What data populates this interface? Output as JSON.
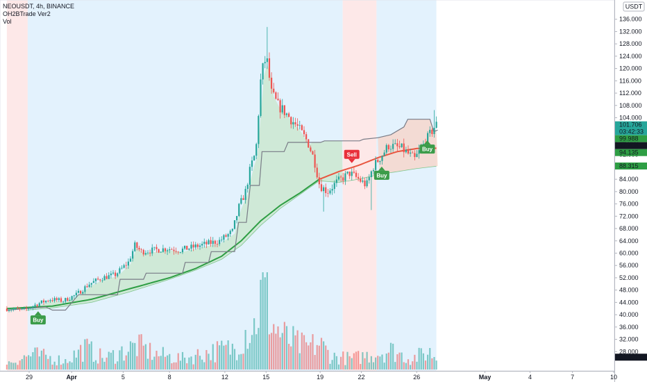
{
  "legend": {
    "symbol_line": "NEOUSDT, 4h, BINANCE",
    "indicator": "OH2BTrade Ver2",
    "volume": "Vol"
  },
  "currency_badge": "USDT",
  "colors": {
    "up": "#26a69a",
    "down": "#ef5350",
    "bg_bull": "#e3f2fd",
    "bg_bear": "#fde8e8",
    "ema_green": "#2e9e44",
    "ema_red": "#e8553f",
    "stop_line": "#787b86",
    "fill_green": "#c8e6c9",
    "fill_red": "#f8d3c5",
    "buy": "#3b9c49",
    "sell": "#e8303b"
  },
  "chart_data": {
    "type": "candlestick",
    "symbol": "NEOUSDT",
    "interval": "4h",
    "exchange": "BINANCE",
    "ylim": [
      24,
      140
    ],
    "y_ticks": [
      "28.000",
      "32.000",
      "36.000",
      "40.000",
      "44.000",
      "48.000",
      "52.000",
      "56.000",
      "60.000",
      "64.000",
      "68.000",
      "72.000",
      "76.000",
      "80.000",
      "84.000",
      "88.000",
      "92.000",
      "96.000",
      "100.000",
      "104.000",
      "108.000",
      "112.000",
      "116.000",
      "120.000",
      "124.000",
      "128.000",
      "132.000",
      "136.000"
    ],
    "x_ticks": [
      "29",
      "Apr",
      "5",
      "8",
      "12",
      "15",
      "19",
      "22",
      "26",
      "May",
      "4",
      "7",
      "10"
    ],
    "price_tags": [
      {
        "label": "101.706",
        "sub": "03:42:33",
        "value": 101.706,
        "color": "#26a69a"
      },
      {
        "label": "99.988",
        "value": 99.988,
        "color": "#2e9e44"
      },
      {
        "label": "97.408",
        "value": 97.408,
        "color": "#131722"
      },
      {
        "label": "94.135",
        "value": 94.135,
        "color": "#2e9e44"
      },
      {
        "label": "88.315",
        "value": 88.315,
        "color": "#2e9e44"
      },
      {
        "label": "67.807K",
        "value": 26.2,
        "color": "#131722"
      }
    ],
    "signals": [
      {
        "type": "Buy",
        "day": 0.9,
        "price": 40.0,
        "position": "below"
      },
      {
        "type": "Sell",
        "day": 25.0,
        "price": 89.5,
        "position": "above"
      },
      {
        "type": "Buy",
        "day": 27.3,
        "price": 87.0,
        "position": "below"
      },
      {
        "type": "Buy",
        "day": 30.8,
        "price": 95.5,
        "position": "below"
      }
    ],
    "regimes": [
      {
        "from": -1.5,
        "to": 0.1,
        "state": "bear"
      },
      {
        "from": 0.1,
        "to": 24.3,
        "state": "bull"
      },
      {
        "from": 24.3,
        "to": 26.9,
        "state": "bear"
      },
      {
        "from": 26.9,
        "to": 31.5,
        "state": "bull"
      }
    ],
    "price_anchors": [
      [
        -1.5,
        42.0
      ],
      [
        0.0,
        41.5
      ],
      [
        1.0,
        43.5
      ],
      [
        2.0,
        45.0
      ],
      [
        3.0,
        44.5
      ],
      [
        4.0,
        46.5
      ],
      [
        5.0,
        50.0
      ],
      [
        6.0,
        52.0
      ],
      [
        7.0,
        53.0
      ],
      [
        8.0,
        57.0
      ],
      [
        8.5,
        62.5
      ],
      [
        9.0,
        60.5
      ],
      [
        10.0,
        61.0
      ],
      [
        11.0,
        61.5
      ],
      [
        12.0,
        61.0
      ],
      [
        13.0,
        62.0
      ],
      [
        14.0,
        63.0
      ],
      [
        15.0,
        64.0
      ],
      [
        16.0,
        67.0
      ],
      [
        16.5,
        75.0
      ],
      [
        17.0,
        80.0
      ],
      [
        17.4,
        88.0
      ],
      [
        17.8,
        93.0
      ],
      [
        18.2,
        118.0
      ],
      [
        18.6,
        124.0
      ],
      [
        19.0,
        112.0
      ],
      [
        19.5,
        108.0
      ],
      [
        20.0,
        106.0
      ],
      [
        21.0,
        101.0
      ],
      [
        21.8,
        96.0
      ],
      [
        22.3,
        90.0
      ],
      [
        22.7,
        82.0
      ],
      [
        23.3,
        80.0
      ],
      [
        24.0,
        83.0
      ],
      [
        25.0,
        86.0
      ],
      [
        25.7,
        84.0
      ],
      [
        26.3,
        82.0
      ],
      [
        26.8,
        88.0
      ],
      [
        27.5,
        92.0
      ],
      [
        28.0,
        95.0
      ],
      [
        29.0,
        94.0
      ],
      [
        30.0,
        90.5
      ],
      [
        30.8,
        96.0
      ],
      [
        31.3,
        99.5
      ],
      [
        31.6,
        101.7
      ]
    ],
    "ema_slow_anchors": [
      [
        -1.5,
        42.0
      ],
      [
        2.0,
        42.8
      ],
      [
        5.0,
        45.0
      ],
      [
        8.0,
        48.5
      ],
      [
        11.0,
        52.0
      ],
      [
        13.0,
        55.0
      ],
      [
        15.0,
        59.0
      ],
      [
        16.5,
        64.0
      ],
      [
        18.0,
        70.5
      ],
      [
        19.5,
        75.5
      ],
      [
        21.0,
        79.5
      ],
      [
        22.5,
        84.0
      ],
      [
        24.0,
        86.5
      ],
      [
        25.5,
        88.5
      ],
      [
        27.0,
        91.0
      ],
      [
        28.5,
        93.0
      ],
      [
        30.0,
        94.0
      ],
      [
        31.6,
        94.1
      ]
    ],
    "lower_band_anchors": [
      [
        0.0,
        41.5
      ],
      [
        2.0,
        42.2
      ],
      [
        5.0,
        44.0
      ],
      [
        8.0,
        47.5
      ],
      [
        11.0,
        51.5
      ],
      [
        13.0,
        54.5
      ],
      [
        15.0,
        58.0
      ],
      [
        16.5,
        62.5
      ],
      [
        18.0,
        69.0
      ],
      [
        19.5,
        74.5
      ],
      [
        21.0,
        79.0
      ],
      [
        22.5,
        83.5
      ],
      [
        24.0,
        83.0
      ],
      [
        25.5,
        84.0
      ],
      [
        27.0,
        85.5
      ],
      [
        28.5,
        86.5
      ],
      [
        30.0,
        87.5
      ],
      [
        31.6,
        88.3
      ]
    ],
    "stop_anchors": [
      [
        -1.5,
        41.5
      ],
      [
        1.5,
        42.5
      ],
      [
        2.0,
        41.5
      ],
      [
        3.0,
        41.5
      ],
      [
        4.0,
        46.5
      ],
      [
        7.0,
        46.5
      ],
      [
        7.2,
        51.5
      ],
      [
        9.0,
        51.5
      ],
      [
        9.2,
        53.5
      ],
      [
        12.0,
        53.5
      ],
      [
        12.2,
        57.0
      ],
      [
        14.0,
        57.0
      ],
      [
        14.2,
        60.5
      ],
      [
        16.0,
        60.5
      ],
      [
        16.3,
        70.0
      ],
      [
        16.9,
        70.0
      ],
      [
        17.2,
        82.0
      ],
      [
        17.9,
        82.0
      ],
      [
        18.1,
        93.0
      ],
      [
        19.8,
        93.0
      ],
      [
        20.1,
        96.0
      ],
      [
        22.6,
        96.0
      ],
      [
        22.9,
        96.5
      ],
      [
        25.6,
        96.5
      ],
      [
        25.9,
        97.0
      ],
      [
        27.0,
        97.5
      ],
      [
        28.0,
        98.5
      ],
      [
        29.0,
        101.0
      ],
      [
        29.3,
        103.5
      ],
      [
        31.0,
        103.5
      ],
      [
        31.3,
        99.5
      ],
      [
        31.6,
        99.988
      ]
    ],
    "volume_anchors": [
      [
        -1.5,
        1.5
      ],
      [
        0.5,
        3.5
      ],
      [
        3.0,
        2.0
      ],
      [
        4.5,
        5.0
      ],
      [
        6.0,
        2.5
      ],
      [
        8.5,
        5.5
      ],
      [
        10.0,
        3.5
      ],
      [
        12.0,
        2.5
      ],
      [
        14.0,
        4.0
      ],
      [
        16.0,
        5.0
      ],
      [
        16.8,
        9.0
      ],
      [
        17.5,
        10.0
      ],
      [
        18.2,
        19.0
      ],
      [
        19.0,
        10.0
      ],
      [
        20.0,
        7.0
      ],
      [
        21.5,
        5.0
      ],
      [
        22.5,
        6.0
      ],
      [
        23.5,
        3.0
      ],
      [
        25.0,
        2.5
      ],
      [
        26.5,
        3.5
      ],
      [
        28.0,
        4.5
      ],
      [
        29.5,
        2.5
      ],
      [
        31.0,
        4.0
      ],
      [
        31.6,
        2.5
      ]
    ]
  }
}
